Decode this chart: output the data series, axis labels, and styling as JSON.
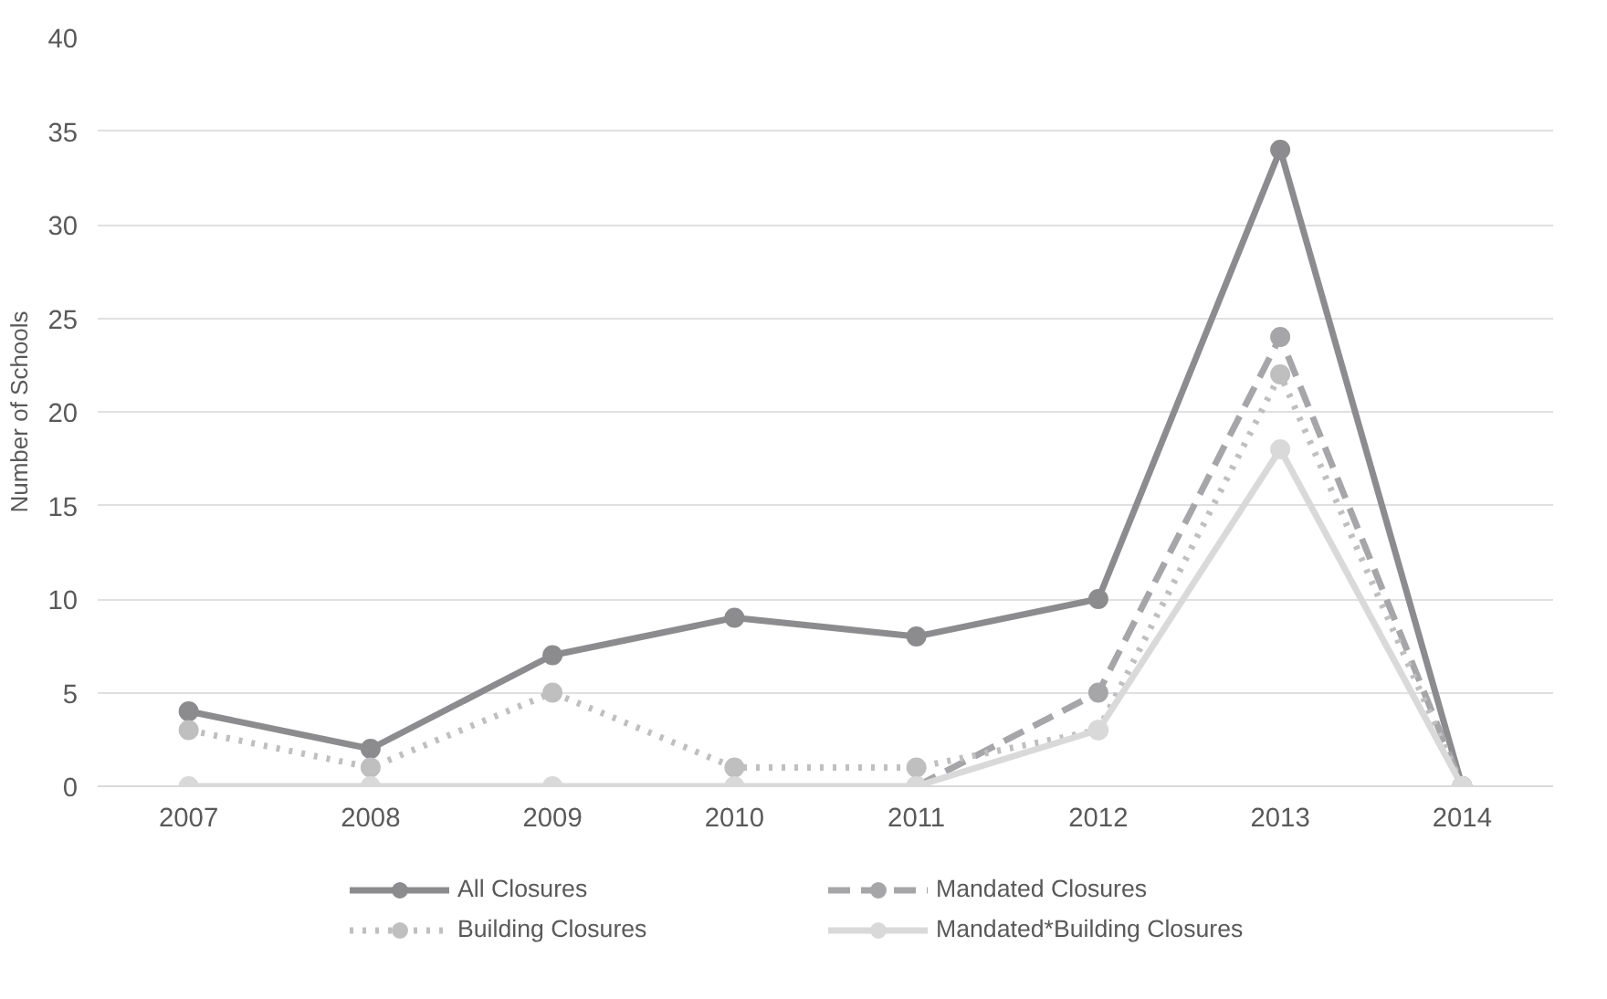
{
  "chart_data": {
    "type": "line",
    "ylabel": "Number of Schools",
    "categories": [
      "2007",
      "2008",
      "2009",
      "2010",
      "2011",
      "2012",
      "2013",
      "2014"
    ],
    "series": [
      {
        "name": "All Closures",
        "color": "#8c8c8e",
        "line_style": "solid",
        "values": [
          4,
          2,
          7,
          9,
          8,
          10,
          34,
          0
        ]
      },
      {
        "name": "Mandated Closures",
        "color": "#a6a6a8",
        "line_style": "dashed",
        "values": [
          null,
          null,
          null,
          null,
          0,
          5,
          24,
          0
        ]
      },
      {
        "name": "Building Closures",
        "color": "#bfbfbf",
        "line_style": "dotted",
        "values": [
          3,
          1,
          5,
          1,
          1,
          3,
          22,
          0
        ]
      },
      {
        "name": "Mandated*Building Closures",
        "color": "#d9d9d9",
        "line_style": "solid",
        "values": [
          0,
          0,
          0,
          0,
          0,
          3,
          18,
          0
        ]
      }
    ],
    "ylim": [
      0,
      40
    ],
    "yticks": [
      0,
      5,
      10,
      15,
      20,
      25,
      30,
      35,
      40
    ],
    "grid": "y",
    "legend": "bottom",
    "marker": "circle"
  }
}
